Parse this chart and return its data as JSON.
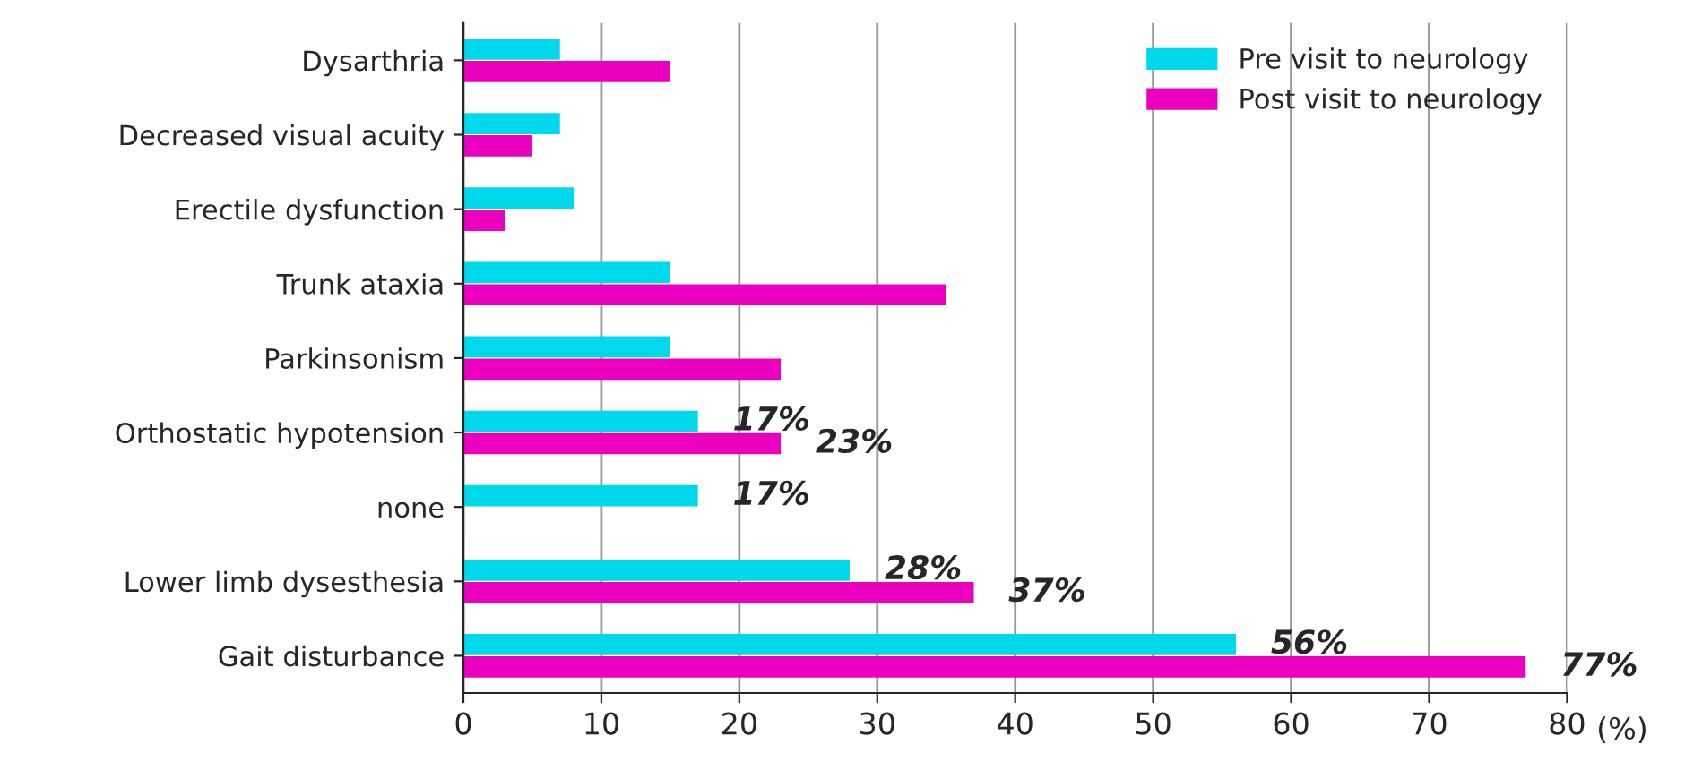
{
  "chart_data": {
    "type": "bar",
    "orientation": "horizontal",
    "xlabel": "(%)",
    "categories": [
      "Dysarthria",
      "Decreased visual acuity",
      "Erectile dysfunction",
      "Trunk ataxia",
      "Parkinsonism",
      "Orthostatic hypotension",
      "none",
      "Lower limb dysesthesia",
      "Gait disturbance"
    ],
    "series": [
      {
        "name": "Pre visit to neurology",
        "color": "#00d8ec",
        "values": [
          7,
          7,
          8,
          15,
          15,
          17,
          17,
          28,
          56
        ],
        "value_labels": [
          null,
          null,
          null,
          null,
          null,
          "17%",
          "17%",
          "28%",
          "56%"
        ]
      },
      {
        "name": "Post visit to neurology",
        "color": "#ec00c0",
        "values": [
          15,
          5,
          3,
          35,
          23,
          23,
          0,
          37,
          77
        ],
        "value_labels": [
          null,
          null,
          null,
          null,
          null,
          "23%",
          null,
          "37%",
          "77%"
        ]
      }
    ],
    "xlim": [
      0,
      80
    ],
    "xticks": [
      0,
      10,
      20,
      30,
      40,
      50,
      60,
      70,
      80
    ],
    "grid": "x",
    "legend": "top right"
  }
}
